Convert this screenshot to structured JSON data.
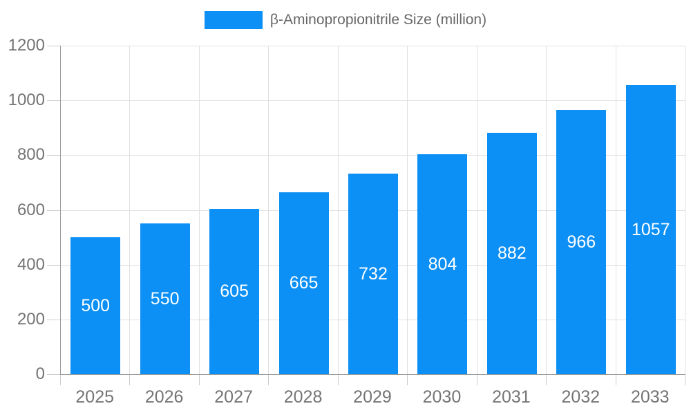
{
  "chart_data": {
    "type": "bar",
    "title": "",
    "categories": [
      "2025",
      "2026",
      "2027",
      "2028",
      "2029",
      "2030",
      "2031",
      "2032",
      "2033"
    ],
    "series": [
      {
        "name": "β-Aminopropionitrile Size (million)",
        "values": [
          500,
          550,
          605,
          665,
          732,
          804,
          882,
          966,
          1057
        ]
      }
    ],
    "bar_value_labels": [
      "500",
      "550",
      "605",
      "665",
      "732",
      "804",
      "882",
      "966",
      "1057"
    ],
    "xlabel": "",
    "ylabel": "",
    "ylim": [
      0,
      1200
    ],
    "yticks": [
      0,
      200,
      400,
      600,
      800,
      1000,
      1200
    ],
    "grid": true,
    "legend_position": "top",
    "colors": {
      "bar": "#0c90f5",
      "bar_value_text": "#ffffff",
      "gridline": "#e0e0e0",
      "tick": "#cccccc",
      "axis_line": "#999999",
      "axis_text": "#757575",
      "legend_text": "#666666",
      "background": "#ffffff"
    }
  }
}
